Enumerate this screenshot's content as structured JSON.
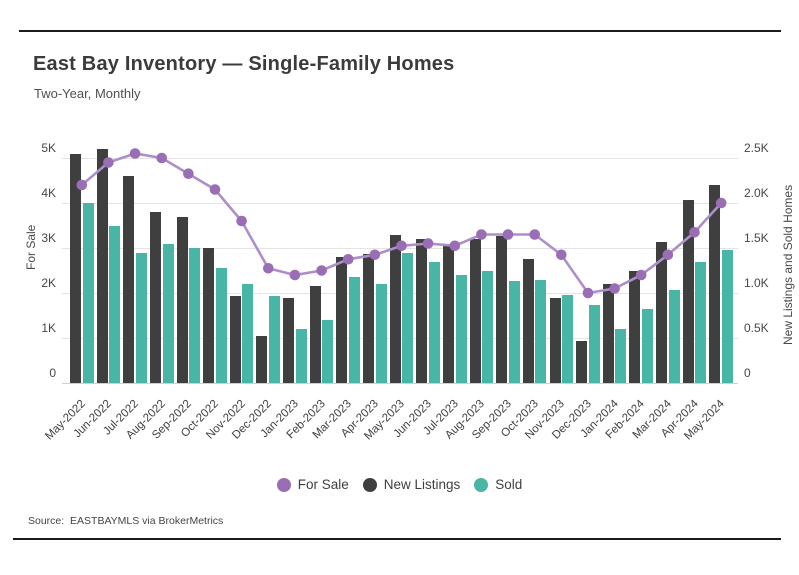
{
  "header": {
    "title": "East Bay Inventory — Single-Family Homes",
    "subtitle": "Two-Year, Monthly"
  },
  "source_note": "Source:  EASTBAYMLS via BrokerMetrics",
  "colors": {
    "for_sale_dot": "#9a6eb4",
    "for_sale_line": "#ac8fc9",
    "new_listings": "#3f3f3f",
    "sold": "#49b6a5",
    "gridline": "#e4e4e4",
    "rule": "#1a1a1a"
  },
  "legend": [
    {
      "label": "For Sale",
      "color": "#9a6eb4"
    },
    {
      "label": "New Listings",
      "color": "#3f3f3f"
    },
    {
      "label": "Sold",
      "color": "#49b6a5"
    }
  ],
  "chart_data": {
    "type": "bar",
    "subtype": "grouped bars with overlaid line",
    "title": "East Bay Inventory — Single-Family Homes",
    "subtitle": "Two-Year, Monthly",
    "categories": [
      "May-2022",
      "Jun-2022",
      "Jul-2022",
      "Aug-2022",
      "Sep-2022",
      "Oct-2022",
      "Nov-2022",
      "Dec-2022",
      "Jan-2023",
      "Feb-2023",
      "Mar-2023",
      "Apr-2023",
      "May-2023",
      "Jun-2023",
      "Jul-2023",
      "Aug-2023",
      "Sep-2023",
      "Oct-2023",
      "Nov-2023",
      "Dec-2023",
      "Jan-2024",
      "Feb-2024",
      "Mar-2024",
      "Apr-2024",
      "May-2024"
    ],
    "series": [
      {
        "name": "For Sale",
        "render": "line",
        "axis": "left",
        "values": [
          4400,
          4900,
          5100,
          5000,
          4650,
          4300,
          3600,
          2550,
          2400,
          2500,
          2750,
          2850,
          3050,
          3100,
          3050,
          3300,
          3300,
          3300,
          2850,
          2000,
          2100,
          2400,
          2850,
          3350,
          4000
        ]
      },
      {
        "name": "New Listings",
        "render": "bar",
        "axis": "right",
        "values": [
          2550,
          2600,
          2300,
          1900,
          1850,
          1500,
          970,
          520,
          950,
          1080,
          1400,
          1430,
          1650,
          1600,
          1550,
          1600,
          1630,
          1380,
          940,
          470,
          1100,
          1240,
          1570,
          2030,
          2200
        ]
      },
      {
        "name": "Sold",
        "render": "bar",
        "axis": "right",
        "values": [
          2000,
          1750,
          1450,
          1550,
          1500,
          1280,
          1100,
          970,
          600,
          700,
          1180,
          1100,
          1450,
          1350,
          1200,
          1250,
          1130,
          1150,
          980,
          870,
          600,
          820,
          1030,
          1350,
          1480
        ]
      }
    ],
    "left_axis": {
      "label": "For Sale",
      "ticks": [
        "0",
        "1K",
        "2K",
        "3K",
        "4K",
        "5K"
      ],
      "min": 0,
      "max": 5000
    },
    "right_axis": {
      "label": "New Listings and Sold Homes",
      "ticks": [
        "0",
        "0.5K",
        "1.0K",
        "1.5K",
        "2.0K",
        "2.5K"
      ],
      "min": 0,
      "max": 2500
    },
    "grid": true,
    "legend_position": "bottom"
  }
}
